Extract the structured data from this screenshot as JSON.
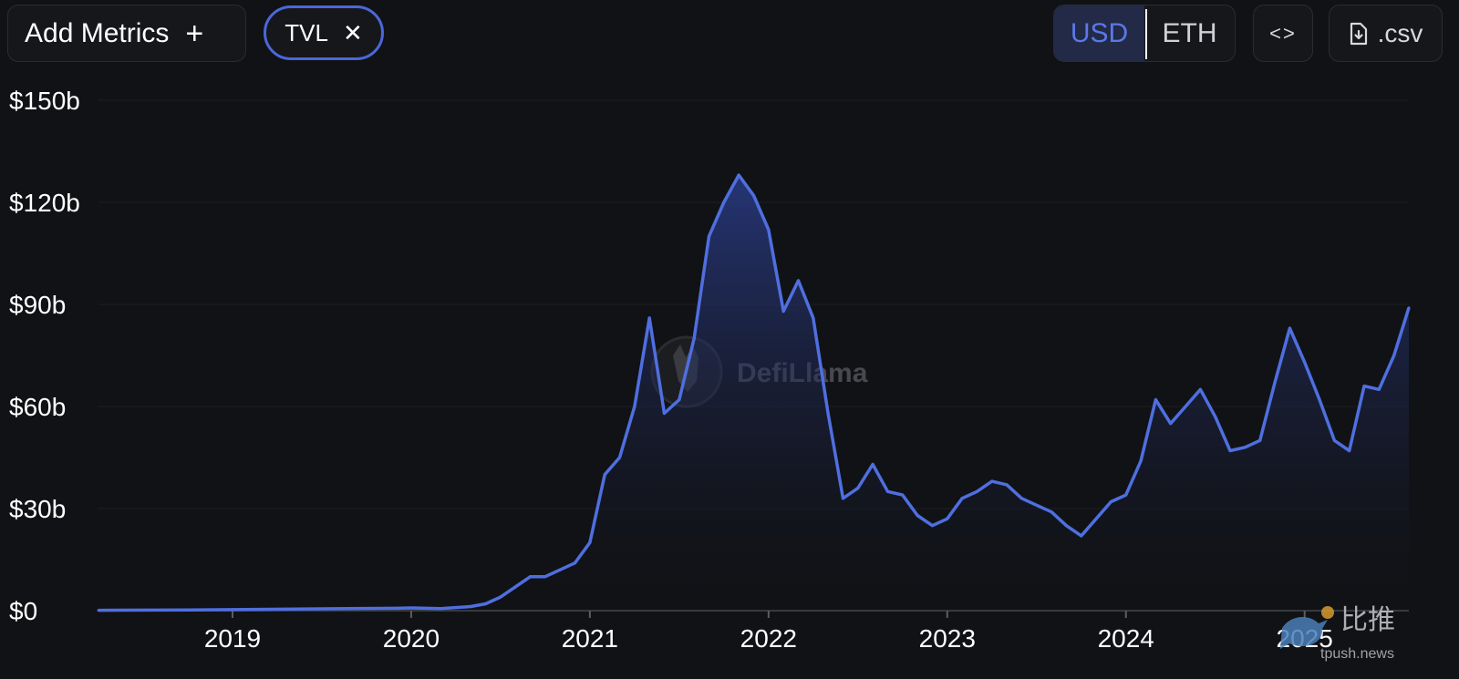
{
  "toolbar": {
    "add_metrics_label": "Add Metrics",
    "add_icon": "plus-icon",
    "metric_chip_label": "TVL",
    "remove_icon": "close-icon",
    "currency_options": [
      "USD",
      "ETH"
    ],
    "currency_selected": "USD",
    "embed_label": "<>",
    "embed_icon": "code-icon",
    "csv_label": ".csv",
    "csv_icon": "file-download-icon"
  },
  "watermark": {
    "brand": "DefiLlama",
    "logo_icon": "llama-logo-icon"
  },
  "corner_watermark": {
    "text": "比推",
    "url_fragment": "tpush.news",
    "logo_icon": "bird-logo-icon"
  },
  "colors": {
    "background": "#111215",
    "line": "#4f6fe0",
    "accent": "#4c67d9"
  },
  "chart_data": {
    "type": "area",
    "series": [
      {
        "values": [
          {
            "x": "2018-04",
            "y": 0.1
          },
          {
            "x": "2018-10",
            "y": 0.2
          },
          {
            "x": "2019-01",
            "y": 0.3
          },
          {
            "x": "2019-06",
            "y": 0.5
          },
          {
            "x": "2019-12",
            "y": 0.7
          },
          {
            "x": "2020-01",
            "y": 0.8
          },
          {
            "x": "2020-03",
            "y": 0.6
          },
          {
            "x": "2020-05",
            "y": 1.2
          },
          {
            "x": "2020-06",
            "y": 2
          },
          {
            "x": "2020-07",
            "y": 4
          },
          {
            "x": "2020-08",
            "y": 7
          },
          {
            "x": "2020-09",
            "y": 10
          },
          {
            "x": "2020-10",
            "y": 10
          },
          {
            "x": "2020-11",
            "y": 12
          },
          {
            "x": "2020-12",
            "y": 14
          },
          {
            "x": "2021-01",
            "y": 20
          },
          {
            "x": "2021-02",
            "y": 40
          },
          {
            "x": "2021-03",
            "y": 45
          },
          {
            "x": "2021-04",
            "y": 60
          },
          {
            "x": "2021-05",
            "y": 86
          },
          {
            "x": "2021-06",
            "y": 58
          },
          {
            "x": "2021-07",
            "y": 62
          },
          {
            "x": "2021-08",
            "y": 80
          },
          {
            "x": "2021-09",
            "y": 110
          },
          {
            "x": "2021-10",
            "y": 120
          },
          {
            "x": "2021-11",
            "y": 128
          },
          {
            "x": "2021-12",
            "y": 122
          },
          {
            "x": "2022-01",
            "y": 112
          },
          {
            "x": "2022-02",
            "y": 88
          },
          {
            "x": "2022-03",
            "y": 97
          },
          {
            "x": "2022-04",
            "y": 86
          },
          {
            "x": "2022-05",
            "y": 58
          },
          {
            "x": "2022-06",
            "y": 33
          },
          {
            "x": "2022-07",
            "y": 36
          },
          {
            "x": "2022-08",
            "y": 43
          },
          {
            "x": "2022-09",
            "y": 35
          },
          {
            "x": "2022-10",
            "y": 34
          },
          {
            "x": "2022-11",
            "y": 28
          },
          {
            "x": "2022-12",
            "y": 25
          },
          {
            "x": "2023-01",
            "y": 27
          },
          {
            "x": "2023-02",
            "y": 33
          },
          {
            "x": "2023-03",
            "y": 35
          },
          {
            "x": "2023-04",
            "y": 38
          },
          {
            "x": "2023-05",
            "y": 37
          },
          {
            "x": "2023-06",
            "y": 33
          },
          {
            "x": "2023-07",
            "y": 31
          },
          {
            "x": "2023-08",
            "y": 29
          },
          {
            "x": "2023-09",
            "y": 25
          },
          {
            "x": "2023-10",
            "y": 22
          },
          {
            "x": "2023-11",
            "y": 27
          },
          {
            "x": "2023-12",
            "y": 32
          },
          {
            "x": "2024-01",
            "y": 34
          },
          {
            "x": "2024-02",
            "y": 44
          },
          {
            "x": "2024-03",
            "y": 62
          },
          {
            "x": "2024-04",
            "y": 55
          },
          {
            "x": "2024-05",
            "y": 60
          },
          {
            "x": "2024-06",
            "y": 65
          },
          {
            "x": "2024-07",
            "y": 57
          },
          {
            "x": "2024-08",
            "y": 47
          },
          {
            "x": "2024-09",
            "y": 48
          },
          {
            "x": "2024-10",
            "y": 50
          },
          {
            "x": "2024-11",
            "y": 67
          },
          {
            "x": "2024-12",
            "y": 83
          },
          {
            "x": "2025-01",
            "y": 73
          },
          {
            "x": "2025-02",
            "y": 62
          },
          {
            "x": "2025-03",
            "y": 50
          },
          {
            "x": "2025-04",
            "y": 47
          },
          {
            "x": "2025-05",
            "y": 66
          },
          {
            "x": "2025-06",
            "y": 65
          },
          {
            "x": "2025-07",
            "y": 75
          },
          {
            "x": "2025-08",
            "y": 89
          }
        ]
      }
    ],
    "x_ticks": [
      "2019",
      "2020",
      "2021",
      "2022",
      "2023",
      "2024",
      "2025"
    ],
    "x_range": [
      "2018-04",
      "2025-08"
    ],
    "y_ticks": [
      "$0",
      "$30b",
      "$60b",
      "$90b",
      "$120b",
      "$150b"
    ],
    "y_tick_values": [
      0,
      30,
      60,
      90,
      120,
      150
    ],
    "ylim": [
      0,
      150
    ],
    "grid": true,
    "title": "",
    "xlabel": "",
    "ylabel": ""
  }
}
